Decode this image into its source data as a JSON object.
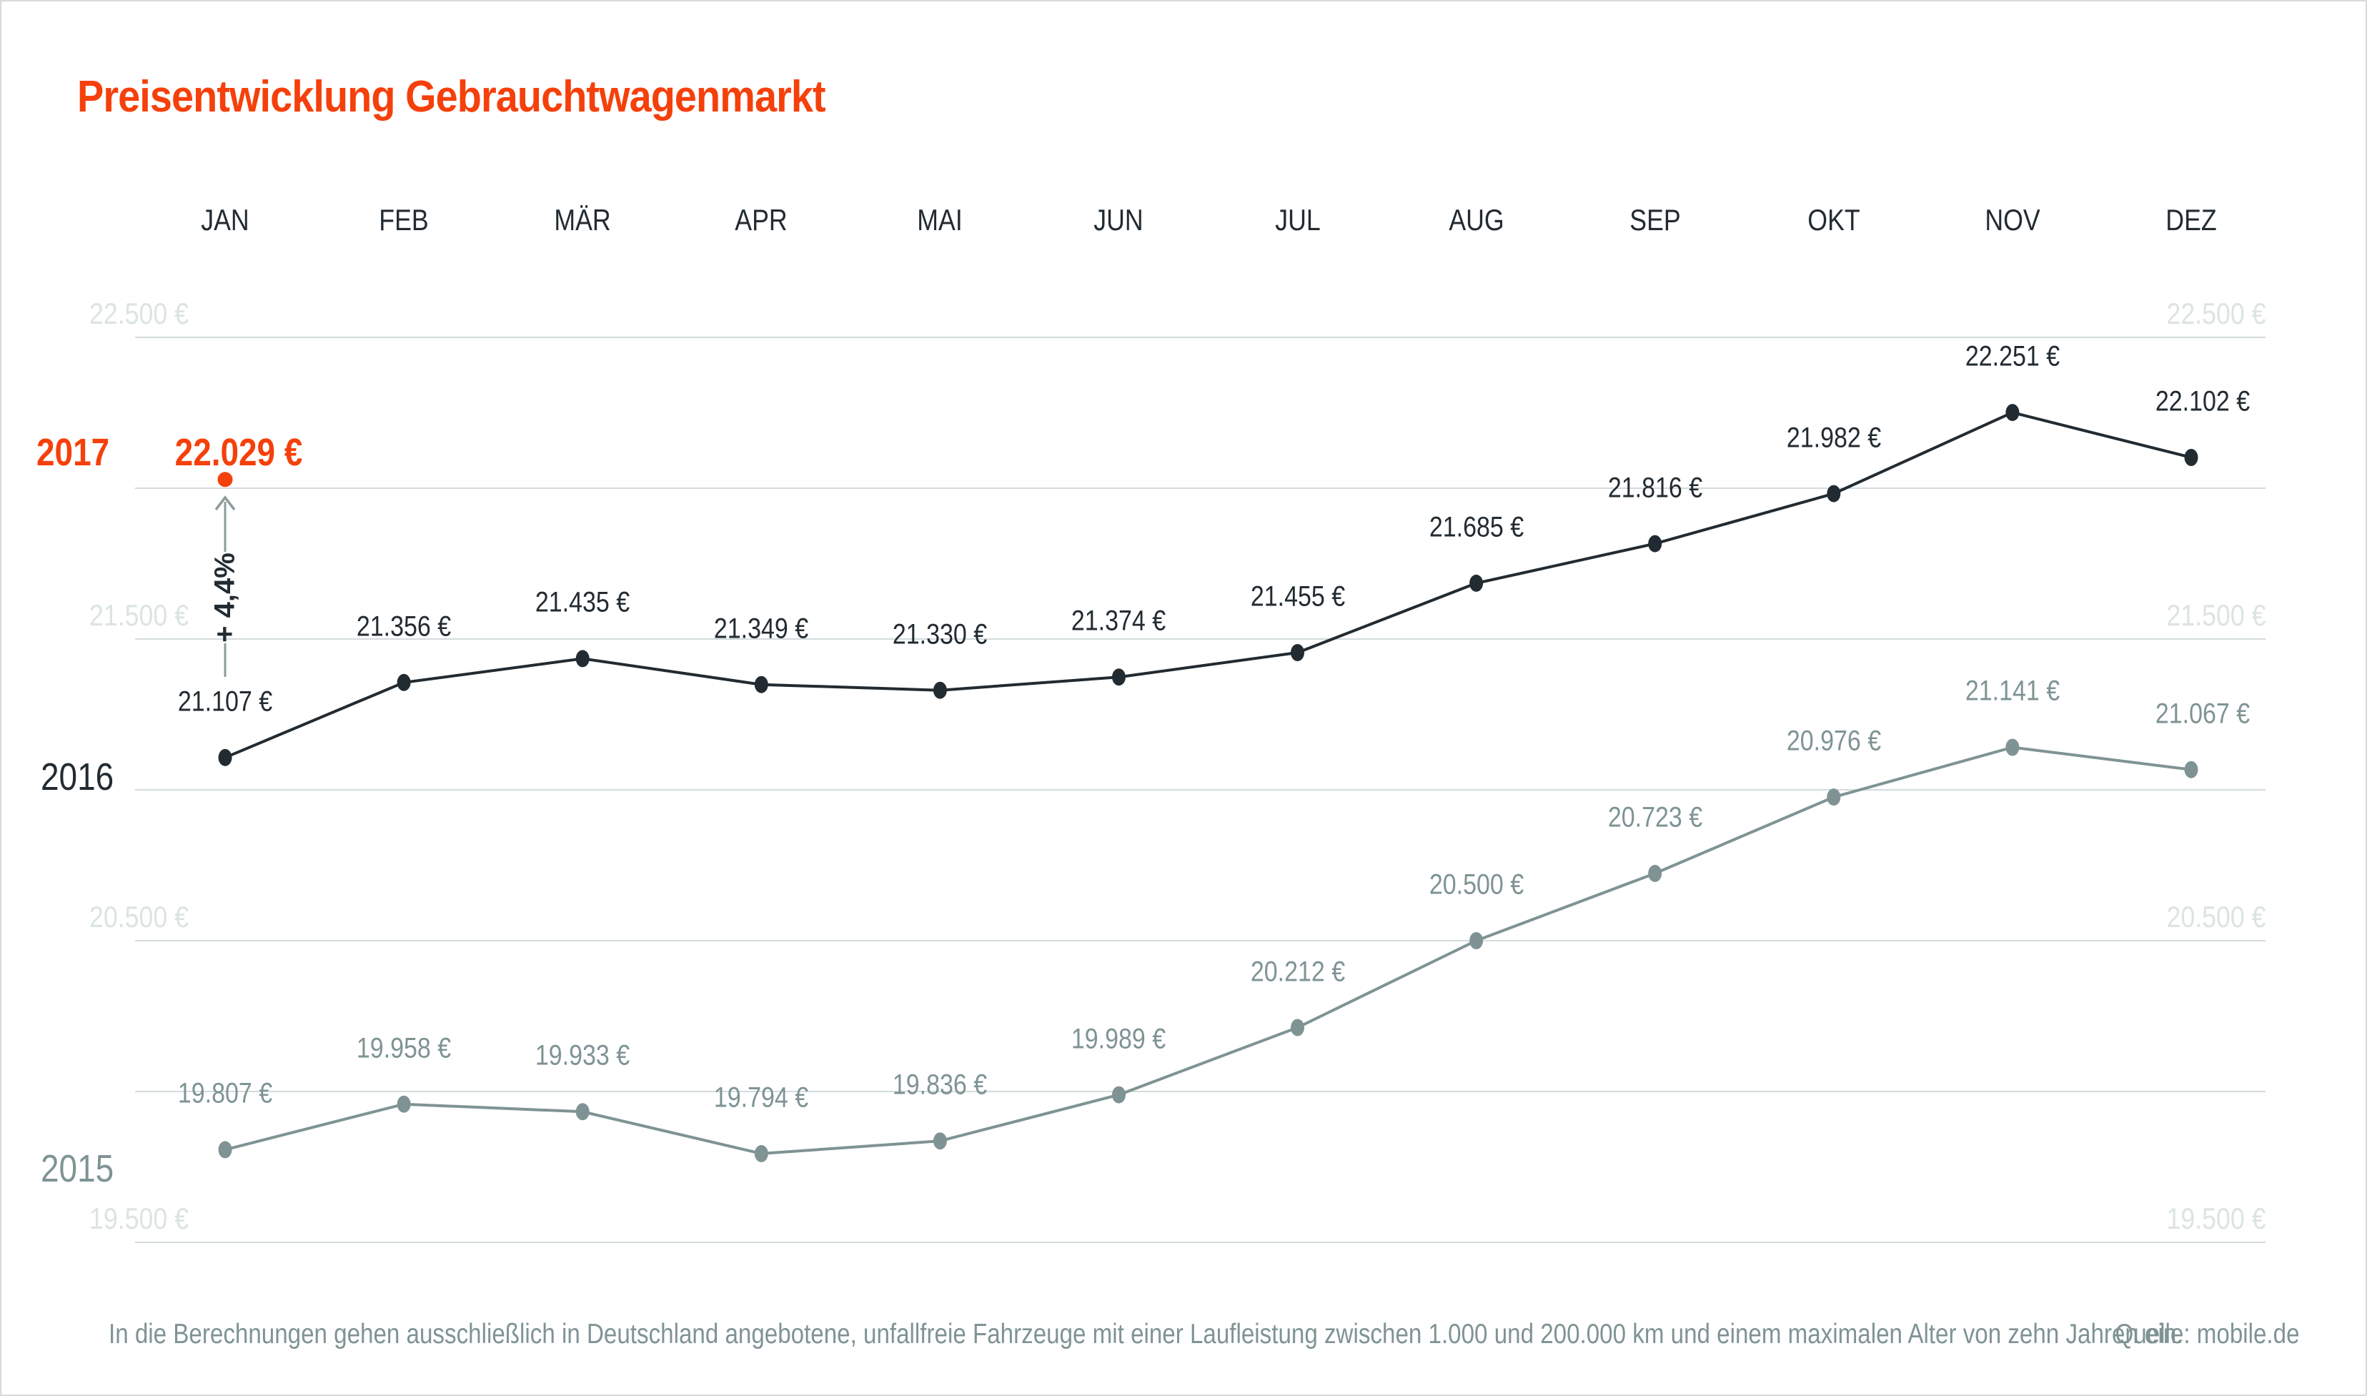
{
  "title": "Preisentwicklung Gebrauchtwagenmarkt",
  "colors": {
    "accent": "#f5400b",
    "series_2016": "#222b31",
    "series_2015": "#7f9394",
    "grid": "#d3dbdb",
    "axis_label": "#dce3e3",
    "arrow": "#8b9b9b"
  },
  "annotation": {
    "year": "2017",
    "value": 22029,
    "value_label": "22.029 €",
    "change_label": "+ 4,4%",
    "month": "JAN"
  },
  "chart_data": {
    "type": "line",
    "categories": [
      "JAN",
      "FEB",
      "MÄR",
      "APR",
      "MAI",
      "JUN",
      "JUL",
      "AUG",
      "SEP",
      "OKT",
      "NOV",
      "DEZ"
    ],
    "series": [
      {
        "name": "2016",
        "color_key": "series_2016",
        "values": [
          21107,
          21356,
          21435,
          21349,
          21330,
          21374,
          21455,
          21685,
          21816,
          21982,
          22251,
          22102
        ],
        "labels": [
          "21.107 €",
          "21.356 €",
          "21.435 €",
          "21.349 €",
          "21.330 €",
          "21.374 €",
          "21.455 €",
          "21.685 €",
          "21.816 €",
          "21.982 €",
          "22.251 €",
          "22.102 €"
        ]
      },
      {
        "name": "2015",
        "color_key": "series_2015",
        "values": [
          19807,
          19958,
          19933,
          19794,
          19836,
          19989,
          20212,
          20500,
          20723,
          20976,
          21141,
          21067
        ],
        "labels": [
          "19.807 €",
          "19.958 €",
          "19.933 €",
          "19.794 €",
          "19.836 €",
          "19.989 €",
          "20.212 €",
          "20.500 €",
          "20.723 €",
          "20.976 €",
          "21.141 €",
          "21.067 €"
        ]
      }
    ],
    "point_2017": {
      "month": "JAN",
      "value": 22029,
      "label": "22.029 €"
    },
    "grid_values": [
      22500,
      22000,
      21500,
      21000,
      20500,
      20000,
      19500
    ],
    "y_ticks": [
      {
        "value": 22500,
        "label": "22.500 €"
      },
      {
        "value": 21500,
        "label": "21.500 €"
      },
      {
        "value": 20500,
        "label": "20.500 €"
      },
      {
        "value": 19500,
        "label": "19.500 €"
      }
    ],
    "ylim": [
      19500,
      22500
    ],
    "grid": true,
    "legend_position": "left-inline-year-labels"
  },
  "footer": {
    "note": "In die Berechnungen gehen ausschließlich in Deutschland angebotene, unfallfreie Fahrzeuge mit einer Laufleistung zwischen 1.000 und 200.000 km und einem maximalen Alter von zehn Jahren ein.",
    "source": "Quelle: mobile.de"
  }
}
